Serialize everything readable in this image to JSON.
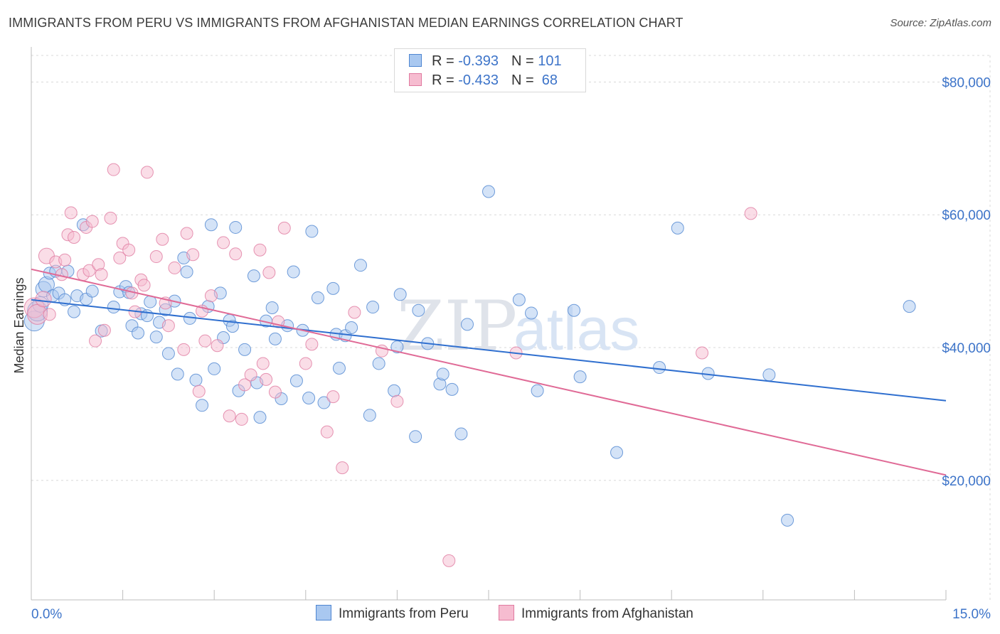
{
  "title": "IMMIGRANTS FROM PERU VS IMMIGRANTS FROM AFGHANISTAN MEDIAN EARNINGS CORRELATION CHART",
  "source": "Source: ZipAtlas.com",
  "watermark": {
    "zip": "ZIP",
    "atlas": "atlas"
  },
  "colors": {
    "peru_fill": "#a9c8f0",
    "peru_stroke": "#4f86d1",
    "peru_line": "#2f6fcf",
    "afg_fill": "#f6bcd0",
    "afg_stroke": "#e07aa0",
    "afg_line": "#e06a96",
    "axis_text": "#3d74c9",
    "grid": "#d8d8d8"
  },
  "legend": {
    "rows": [
      {
        "r_label": "R = ",
        "r_value": "-0.393",
        "n_label": "N = ",
        "n_value": "101"
      },
      {
        "r_label": "R = ",
        "r_value": "-0.433",
        "n_label": "N = ",
        "n_value": " 68"
      }
    ]
  },
  "chart_data": {
    "type": "scatter",
    "title": "IMMIGRANTS FROM PERU VS IMMIGRANTS FROM AFGHANISTAN MEDIAN EARNINGS CORRELATION CHART",
    "xlabel": "",
    "ylabel": "Median Earnings",
    "xlim": [
      0,
      15
    ],
    "ylim": [
      2000,
      84000
    ],
    "x_tick_labels": [
      "0.0%",
      "15.0%"
    ],
    "y_ticks": [
      20000,
      40000,
      60000,
      80000
    ],
    "y_tick_labels": [
      "$20,000",
      "$40,000",
      "$60,000",
      "$80,000"
    ],
    "grid": true,
    "legend_position": "bottom",
    "series": [
      {
        "name": "Immigrants from Peru",
        "trend": {
          "x": [
            0,
            15
          ],
          "y": [
            47200,
            32000
          ]
        },
        "points": [
          [
            0.05,
            44000
          ],
          [
            0.1,
            45500
          ],
          [
            0.15,
            46500
          ],
          [
            0.2,
            48800
          ],
          [
            0.25,
            49500
          ],
          [
            0.3,
            51200
          ],
          [
            0.35,
            47800
          ],
          [
            0.4,
            51500
          ],
          [
            0.45,
            48200
          ],
          [
            0.55,
            47200
          ],
          [
            0.6,
            51500
          ],
          [
            0.7,
            45400
          ],
          [
            0.75,
            47800
          ],
          [
            0.85,
            58500
          ],
          [
            0.9,
            47300
          ],
          [
            1.0,
            48500
          ],
          [
            1.15,
            42500
          ],
          [
            1.35,
            46100
          ],
          [
            1.45,
            48400
          ],
          [
            1.55,
            49200
          ],
          [
            1.6,
            48300
          ],
          [
            1.65,
            43300
          ],
          [
            1.75,
            42200
          ],
          [
            1.8,
            45100
          ],
          [
            1.9,
            44800
          ],
          [
            1.95,
            46900
          ],
          [
            2.05,
            41600
          ],
          [
            2.1,
            43800
          ],
          [
            2.2,
            45700
          ],
          [
            2.25,
            39100
          ],
          [
            2.35,
            47000
          ],
          [
            2.4,
            36000
          ],
          [
            2.5,
            53500
          ],
          [
            2.55,
            51400
          ],
          [
            2.6,
            44400
          ],
          [
            2.7,
            35100
          ],
          [
            2.8,
            31300
          ],
          [
            2.9,
            46200
          ],
          [
            2.95,
            58500
          ],
          [
            3.0,
            36800
          ],
          [
            3.1,
            48200
          ],
          [
            3.15,
            41500
          ],
          [
            3.25,
            44100
          ],
          [
            3.3,
            43200
          ],
          [
            3.35,
            58100
          ],
          [
            3.4,
            33500
          ],
          [
            3.5,
            39700
          ],
          [
            3.65,
            50800
          ],
          [
            3.7,
            34700
          ],
          [
            3.75,
            29500
          ],
          [
            3.85,
            44000
          ],
          [
            3.95,
            46000
          ],
          [
            4.0,
            41300
          ],
          [
            4.1,
            32300
          ],
          [
            4.2,
            43300
          ],
          [
            4.3,
            51400
          ],
          [
            4.35,
            35000
          ],
          [
            4.45,
            42600
          ],
          [
            4.55,
            32400
          ],
          [
            4.6,
            57500
          ],
          [
            4.7,
            47500
          ],
          [
            4.8,
            31700
          ],
          [
            4.95,
            48900
          ],
          [
            5.0,
            42000
          ],
          [
            5.05,
            36900
          ],
          [
            5.15,
            41800
          ],
          [
            5.25,
            43000
          ],
          [
            5.4,
            52400
          ],
          [
            5.55,
            29800
          ],
          [
            5.6,
            46100
          ],
          [
            5.7,
            37600
          ],
          [
            5.95,
            33500
          ],
          [
            6.0,
            40100
          ],
          [
            6.05,
            48000
          ],
          [
            6.3,
            26600
          ],
          [
            6.35,
            45600
          ],
          [
            6.5,
            40600
          ],
          [
            6.7,
            34500
          ],
          [
            6.75,
            36000
          ],
          [
            6.9,
            33700
          ],
          [
            7.05,
            27000
          ],
          [
            7.15,
            43500
          ],
          [
            7.5,
            63500
          ],
          [
            8.0,
            47200
          ],
          [
            8.2,
            45200
          ],
          [
            8.3,
            33500
          ],
          [
            8.9,
            45600
          ],
          [
            9.0,
            35600
          ],
          [
            9.6,
            24200
          ],
          [
            10.3,
            37000
          ],
          [
            10.6,
            58000
          ],
          [
            11.1,
            36100
          ],
          [
            12.1,
            35900
          ],
          [
            12.4,
            14000
          ],
          [
            14.4,
            46200
          ]
        ]
      },
      {
        "name": "Immigrants from Afghanistan",
        "trend": {
          "x": [
            0,
            15
          ],
          "y": [
            51800,
            20800
          ]
        },
        "points": [
          [
            0.05,
            46000
          ],
          [
            0.1,
            45000
          ],
          [
            0.2,
            47300
          ],
          [
            0.25,
            53800
          ],
          [
            0.3,
            45000
          ],
          [
            0.4,
            52900
          ],
          [
            0.5,
            51000
          ],
          [
            0.55,
            53200
          ],
          [
            0.6,
            57000
          ],
          [
            0.65,
            60300
          ],
          [
            0.7,
            56600
          ],
          [
            0.85,
            51000
          ],
          [
            0.9,
            58100
          ],
          [
            0.95,
            51600
          ],
          [
            1.0,
            59000
          ],
          [
            1.05,
            41000
          ],
          [
            1.1,
            52500
          ],
          [
            1.15,
            51000
          ],
          [
            1.2,
            42600
          ],
          [
            1.3,
            59500
          ],
          [
            1.35,
            66800
          ],
          [
            1.45,
            53500
          ],
          [
            1.5,
            55700
          ],
          [
            1.6,
            54700
          ],
          [
            1.65,
            48200
          ],
          [
            1.7,
            45400
          ],
          [
            1.8,
            50200
          ],
          [
            1.85,
            49400
          ],
          [
            1.9,
            66400
          ],
          [
            2.05,
            53700
          ],
          [
            2.15,
            56300
          ],
          [
            2.2,
            46700
          ],
          [
            2.25,
            43300
          ],
          [
            2.35,
            52000
          ],
          [
            2.5,
            39700
          ],
          [
            2.55,
            57200
          ],
          [
            2.65,
            54000
          ],
          [
            2.75,
            33400
          ],
          [
            2.8,
            45500
          ],
          [
            2.85,
            41000
          ],
          [
            2.95,
            47800
          ],
          [
            3.05,
            40300
          ],
          [
            3.15,
            55800
          ],
          [
            3.25,
            29700
          ],
          [
            3.35,
            54100
          ],
          [
            3.45,
            29200
          ],
          [
            3.5,
            34400
          ],
          [
            3.6,
            35900
          ],
          [
            3.75,
            54700
          ],
          [
            3.8,
            37600
          ],
          [
            3.85,
            35200
          ],
          [
            3.9,
            51300
          ],
          [
            4.0,
            33300
          ],
          [
            4.05,
            43900
          ],
          [
            4.15,
            58000
          ],
          [
            4.5,
            37600
          ],
          [
            4.6,
            40500
          ],
          [
            4.85,
            27300
          ],
          [
            4.95,
            32600
          ],
          [
            5.1,
            21900
          ],
          [
            5.3,
            45300
          ],
          [
            5.75,
            39500
          ],
          [
            6.0,
            31900
          ],
          [
            6.85,
            7900
          ],
          [
            7.95,
            39200
          ],
          [
            11.0,
            39200
          ],
          [
            11.8,
            60200
          ]
        ]
      }
    ]
  }
}
